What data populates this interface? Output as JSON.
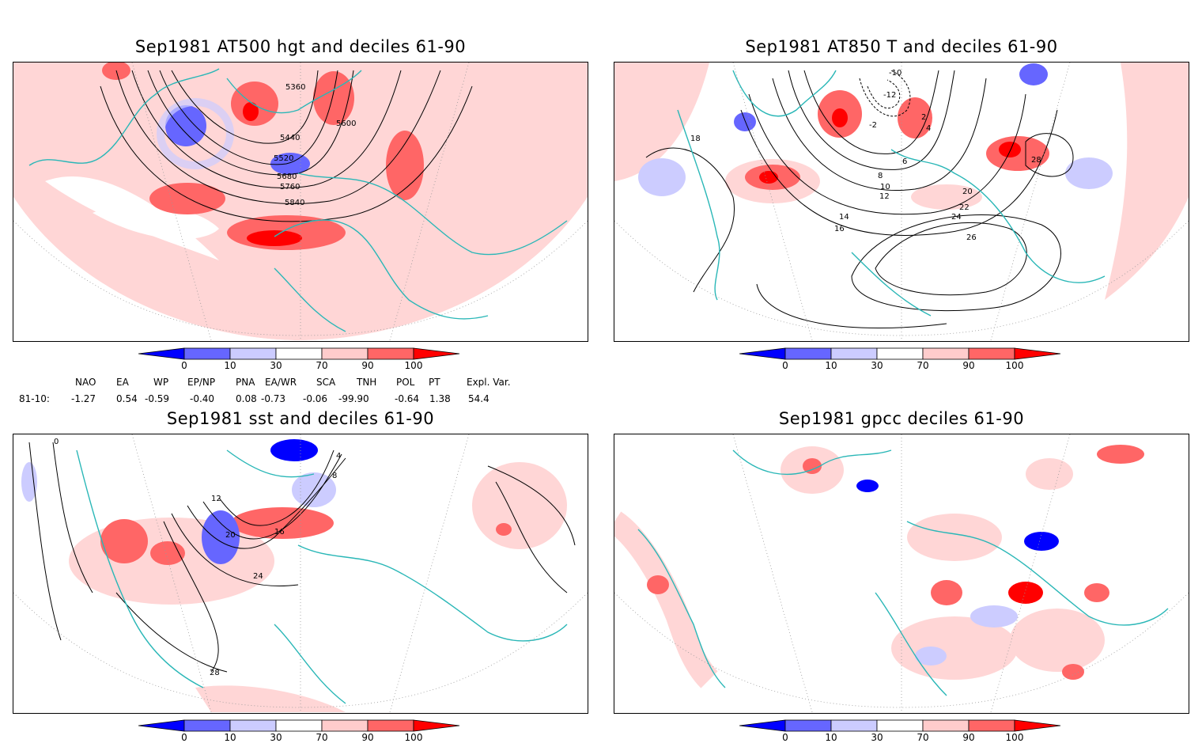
{
  "panels": [
    {
      "id": "hgt500",
      "title": "Sep1981 AT500 hgt and deciles 61-90",
      "contour_labels": [
        "5360",
        "5440",
        "5520",
        "5600",
        "5680",
        "5760",
        "5840"
      ]
    },
    {
      "id": "t850",
      "title": "Sep1981 AT850 T and deciles 61-90",
      "contour_labels": [
        "-10",
        "-12",
        "-2",
        "2",
        "4",
        "6",
        "8",
        "10",
        "12",
        "14",
        "16",
        "18",
        "20",
        "22",
        "24",
        "26",
        "28"
      ]
    },
    {
      "id": "sst",
      "title": "Sep1981 sst and deciles 61-90",
      "contour_labels": [
        "0",
        "4",
        "8",
        "12",
        "16",
        "20",
        "24",
        "28"
      ]
    },
    {
      "id": "gpcc",
      "title": "Sep1981 gpcc deciles 61-90",
      "contour_labels": []
    }
  ],
  "colorbar": {
    "tick_labels": [
      "0",
      "10",
      "30",
      "70",
      "90",
      "100"
    ],
    "colors": [
      "#0000ff",
      "#6666ff",
      "#ccccff",
      "#ffffff",
      "#ffcccc",
      "#ff6666",
      "#ff0000"
    ]
  },
  "teleconnections": {
    "row_label": "81-10:",
    "headers": [
      "NAO",
      "EA",
      "WP",
      "EP/NP",
      "PNA",
      "EA/WR",
      "SCA",
      "TNH",
      "POL",
      "PT",
      "Expl. Var."
    ],
    "values": [
      "-1.27",
      "0.54",
      "-0.59",
      "-0.40",
      "0.08",
      "-0.73",
      "-0.06",
      "-99.90",
      "-0.64",
      "1.38",
      "54.4"
    ]
  },
  "colors": {
    "coastline": "#2ab7b7",
    "light_red": "#ffcccc",
    "mid_red": "#ff6666",
    "dark_red": "#ff0000",
    "light_blue": "#ccccff",
    "mid_blue": "#6666ff",
    "dark_blue": "#0000ff"
  }
}
